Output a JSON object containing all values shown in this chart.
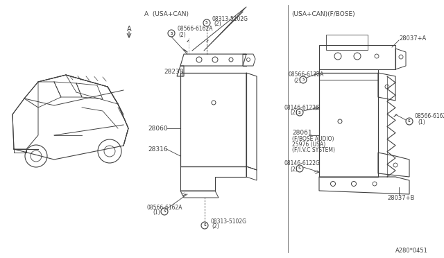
{
  "bg_color": "#ffffff",
  "line_color": "#404040",
  "text_color": "#404040",
  "diagram_ref": "A280*0451",
  "section_A_label": "(USA+CAN)",
  "section_B_label": "(USA+CAN)(F/BOSE)",
  "car_label": "A"
}
